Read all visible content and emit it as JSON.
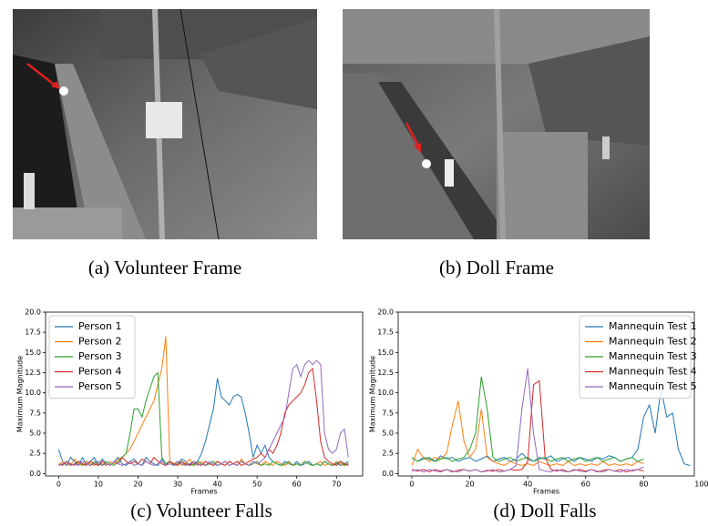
{
  "figures": [
    {
      "caption": "(a) Volunteer Frame"
    },
    {
      "caption": "(b) Doll Frame"
    }
  ],
  "chart_data": [
    {
      "type": "line",
      "caption": "(c) Volunteer Falls",
      "xlabel": "Frames",
      "ylabel": "Maximum Magnitude",
      "x": [
        0,
        1,
        2,
        3,
        4,
        5,
        6,
        7,
        8,
        9,
        10,
        11,
        12,
        13,
        14,
        15,
        16,
        17,
        18,
        19,
        20,
        21,
        22,
        23,
        24,
        25,
        26,
        27,
        28,
        29,
        30,
        31,
        32,
        33,
        34,
        35,
        36,
        37,
        38,
        39,
        40,
        41,
        42,
        43,
        44,
        45,
        46,
        47,
        48,
        49,
        50,
        51,
        52,
        53,
        54,
        55,
        56,
        57,
        58,
        59,
        60,
        61,
        62,
        63,
        64,
        65,
        66,
        67,
        68,
        69,
        70,
        71,
        72,
        73
      ],
      "xlim": [
        -3.3,
        76.6
      ],
      "xticks": [
        0,
        10,
        20,
        30,
        40,
        50,
        60,
        70
      ],
      "ylim": [
        -0.3,
        20
      ],
      "yticks": [
        {
          "value": 0,
          "label": "0.0"
        },
        2.5,
        {
          "value": 5,
          "label": "5.0"
        },
        7.5,
        {
          "value": 10,
          "label": "10.0"
        },
        12.5,
        {
          "value": 15,
          "label": "15.0"
        },
        17.5,
        {
          "value": 20,
          "label": "20.0"
        }
      ],
      "legend": "upper left",
      "series": [
        {
          "name": "Person 1",
          "color": "#1f77b4",
          "values": [
            3,
            1.5,
            1,
            2,
            1.5,
            1,
            2,
            1.2,
            1.5,
            2,
            1,
            1.8,
            1.2,
            1,
            1.5,
            2,
            1.2,
            1,
            1.5,
            1.8,
            1.2,
            1,
            2,
            1.5,
            1.2,
            1,
            1.8,
            1.2,
            1.5,
            1,
            1.2,
            1.8,
            1.5,
            1,
            1.2,
            1.5,
            2.5,
            4,
            6,
            8,
            11.8,
            9.5,
            9,
            8.5,
            9.5,
            9.8,
            9.5,
            7.5,
            5,
            2,
            3.5,
            2.5,
            3.5,
            2,
            1.5,
            1.2,
            1,
            1.5,
            1.2,
            1,
            1.5,
            1,
            1.2,
            1.5,
            1,
            1.2,
            1,
            1.5,
            1.2,
            1,
            1.3,
            1,
            1.2,
            1.5
          ]
        },
        {
          "name": "Person 2",
          "color": "#ff7f0e",
          "values": [
            1,
            1.5,
            1.2,
            1,
            1.8,
            1.2,
            1,
            1.5,
            1.2,
            1,
            1.5,
            1.2,
            1,
            1.5,
            1.2,
            1.8,
            2,
            2.5,
            3,
            4,
            5,
            6,
            7,
            8,
            9,
            11,
            13,
            17,
            1.5,
            1.2,
            1.5,
            1,
            1.2,
            1.8,
            1,
            1.2,
            1.5,
            1,
            1.2,
            1,
            1.5,
            1.2,
            1,
            1.5,
            1.2,
            1,
            1.8,
            1.2,
            1,
            1.5,
            1.2,
            1,
            1.5,
            1.2,
            1,
            1.5,
            1.2,
            1,
            1.3,
            1,
            1.2,
            1,
            1.5,
            1.2,
            1,
            1.2,
            1.5,
            1,
            1.2,
            1,
            1.5,
            1.2,
            1,
            1.3
          ]
        },
        {
          "name": "Person 3",
          "color": "#2ca02c",
          "values": [
            1,
            1.2,
            1.5,
            1,
            1.2,
            1.5,
            1,
            1.2,
            1,
            1.5,
            1.2,
            1,
            1.5,
            1.2,
            1,
            1.5,
            2,
            2.5,
            5,
            8,
            8,
            7,
            9,
            10.5,
            12,
            12.5,
            2,
            1.2,
            1.5,
            1,
            1.2,
            1.5,
            1,
            1.2,
            1,
            1.5,
            1.2,
            1,
            1.2,
            1.5,
            1,
            1.2,
            1.5,
            1,
            1.2,
            1,
            1.5,
            1.2,
            1,
            1.2,
            1.5,
            1,
            1.2,
            1,
            1.5,
            1.2,
            1,
            1.2,
            1.5,
            1,
            1.2,
            1,
            1.5,
            1.2,
            1,
            1.2,
            1,
            1.5,
            1.2,
            1,
            1.2,
            1.5,
            1,
            1.2
          ]
        },
        {
          "name": "Person 4",
          "color": "#d62728",
          "values": [
            1.2,
            1,
            1.5,
            1.2,
            1,
            1.5,
            1.2,
            1,
            1.5,
            1.2,
            1,
            1.5,
            1.2,
            1,
            1.5,
            1.2,
            2,
            1.5,
            1.2,
            1.5,
            1.2,
            1.8,
            1.5,
            1.2,
            2,
            1.5,
            1.2,
            1,
            1.5,
            1.2,
            1,
            1.5,
            1.2,
            1,
            1.5,
            1.2,
            1,
            1.5,
            1.2,
            1,
            1.5,
            1.2,
            1,
            1.5,
            1.2,
            1.5,
            1,
            1.2,
            1.5,
            1.8,
            2,
            2.5,
            2,
            3,
            2.5,
            3.5,
            5,
            7.5,
            8.5,
            9,
            9.5,
            10,
            11,
            12.5,
            13,
            9,
            4,
            2,
            1.5,
            1.2,
            1,
            1.5,
            1.2,
            1
          ]
        },
        {
          "name": "Person 5",
          "color": "#9467bd",
          "values": [
            1,
            1.2,
            1.5,
            1,
            1.2,
            1,
            1.5,
            1.2,
            1,
            1.2,
            1.5,
            1,
            1.2,
            1,
            1.5,
            1.2,
            1,
            1.2,
            1.5,
            1,
            1.2,
            1,
            1.5,
            1.2,
            1,
            1.2,
            1.5,
            1,
            1.2,
            1,
            1.5,
            1.2,
            1,
            1.2,
            1.5,
            1,
            1.2,
            1,
            1.5,
            1.2,
            1,
            1.2,
            1.5,
            1,
            1.2,
            1,
            1.5,
            1.2,
            1,
            1.5,
            1.2,
            1.5,
            2,
            3,
            4,
            5,
            6,
            7,
            10,
            13,
            13.5,
            12,
            13.5,
            14,
            13.5,
            14,
            13.5,
            5,
            3,
            2.5,
            3,
            5,
            5.5,
            2
          ]
        }
      ]
    },
    {
      "type": "line",
      "caption": "(d) Doll Falls",
      "xlabel": "Frames",
      "ylabel": "Maximum Magnitude",
      "x": [
        0,
        2,
        4,
        6,
        8,
        10,
        12,
        14,
        16,
        18,
        20,
        22,
        24,
        26,
        28,
        30,
        32,
        34,
        36,
        38,
        40,
        42,
        44,
        46,
        48,
        50,
        52,
        54,
        56,
        58,
        60,
        62,
        64,
        66,
        68,
        70,
        72,
        74,
        76,
        78,
        80,
        82,
        84,
        86,
        88,
        90,
        92,
        94,
        96
      ],
      "xlim": [
        -4.7,
        97.5
      ],
      "xticks": [
        0,
        20,
        40,
        60,
        80,
        100
      ],
      "ylim": [
        -0.3,
        20
      ],
      "yticks": [
        {
          "value": 0,
          "label": "0.0"
        },
        2.5,
        {
          "value": 5,
          "label": "5.0"
        },
        7.5,
        {
          "value": 10,
          "label": "10.0"
        },
        12.5,
        {
          "value": 15,
          "label": "15.0"
        },
        17.5,
        {
          "value": 20,
          "label": "20.0"
        }
      ],
      "legend": "upper right",
      "series": [
        {
          "name": "Mannequin Test 1",
          "color": "#1f77b4",
          "values": [
            2,
            1.5,
            2,
            1.8,
            1.5,
            2.2,
            1.8,
            2,
            1.5,
            1.8,
            2,
            1.5,
            1.8,
            2.2,
            1.5,
            1.8,
            2,
            1.5,
            1.8,
            2.5,
            1.8,
            1.5,
            2,
            1.8,
            2.2,
            1.5,
            1.8,
            2,
            1.5,
            2,
            1.8,
            1.5,
            2,
            1.8,
            2.2,
            2,
            1.5,
            1.8,
            2,
            3,
            7,
            8.5,
            5,
            10.5,
            7,
            7.5,
            3,
            1.2,
            1
          ]
        },
        {
          "name": "Mannequin Test 2",
          "color": "#ff7f0e",
          "values": [
            1,
            3,
            2,
            1.5,
            2,
            1.8,
            2.5,
            6,
            9,
            4,
            2,
            3,
            8,
            2,
            1.5,
            1.2,
            1,
            1.5,
            1.2,
            1,
            1.2,
            1,
            1.5,
            1.2,
            1,
            1.2,
            1,
            1.5,
            1,
            1.2,
            1,
            1.2,
            1,
            1.5,
            1,
            1.2,
            1,
            1.2,
            1,
            1.5,
            1.2,
            null,
            null,
            null,
            null,
            null,
            null,
            null,
            null
          ]
        },
        {
          "name": "Mannequin Test 3",
          "color": "#2ca02c",
          "values": [
            2,
            1.5,
            1.8,
            2,
            1.5,
            1.8,
            2,
            1.5,
            1.8,
            2,
            3,
            5,
            12,
            8,
            2,
            1.5,
            1.8,
            2,
            1.5,
            1.8,
            2,
            1.5,
            1.8,
            2,
            1.5,
            1.8,
            2,
            1.5,
            1.8,
            2,
            1.5,
            1.8,
            2,
            1.5,
            1.8,
            2,
            1.5,
            1.8,
            2,
            1.5,
            1.8,
            null,
            null,
            null,
            null,
            null,
            null,
            null,
            null
          ]
        },
        {
          "name": "Mannequin Test 4",
          "color": "#d62728",
          "values": [
            0.5,
            0.3,
            0.5,
            0.2,
            0.5,
            0.3,
            0.5,
            0.2,
            0.4,
            0.5,
            0.3,
            0.5,
            0.2,
            0.4,
            0.3,
            0.5,
            0.3,
            0.5,
            0.4,
            0.5,
            1.5,
            11,
            11.5,
            2,
            0.5,
            0.3,
            0.5,
            0.2,
            0.4,
            0.5,
            0.3,
            0.5,
            0.2,
            0.4,
            0.5,
            0.3,
            0.5,
            0.2,
            0.4,
            0.5,
            0.3,
            null,
            null,
            null,
            null,
            null,
            null,
            null,
            null
          ]
        },
        {
          "name": "Mannequin Test 5",
          "color": "#9467bd",
          "values": [
            0.3,
            0.5,
            0.2,
            0.5,
            0.3,
            0.2,
            0.5,
            0.3,
            0.2,
            0.5,
            0.3,
            0.5,
            0.2,
            0.3,
            0.5,
            0.2,
            0.3,
            0.5,
            1,
            8,
            13,
            5,
            0.5,
            0.3,
            0.2,
            0.5,
            0.3,
            0.2,
            0.5,
            0.3,
            0.2,
            0.5,
            0.3,
            0.2,
            0.5,
            0.3,
            0.2,
            0.5,
            0.3,
            0.5,
            0.8,
            null,
            null,
            null,
            null,
            null,
            null,
            null,
            null
          ]
        }
      ]
    }
  ]
}
